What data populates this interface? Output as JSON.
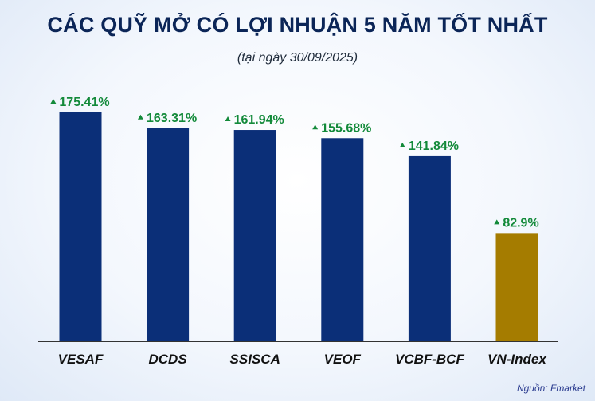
{
  "header": {
    "title": "CÁC QUỸ MỞ CÓ LỢI NHUẬN 5 NĂM TỐT NHẤT",
    "subtitle": "(tại ngày 30/09/2025)"
  },
  "footer": {
    "source": "Nguồn: Fmarket"
  },
  "colors": {
    "fund_bar": "#0b2f78",
    "index_bar": "#a57c00",
    "value_label": "#138a3a",
    "axis": "#333333"
  },
  "chart_data": {
    "type": "bar",
    "title": "CÁC QUỸ MỞ CÓ LỢI NHUẬN 5 NĂM TỐT NHẤT",
    "subtitle": "(tại ngày 30/09/2025)",
    "categories": [
      "VESAF",
      "DCDS",
      "SSISCA",
      "VEOF",
      "VCBF-BCF",
      "VN-Index"
    ],
    "values": [
      175.41,
      163.31,
      161.94,
      155.68,
      141.84,
      82.9
    ],
    "labels": [
      "175.41%",
      "163.31%",
      "161.94%",
      "155.68%",
      "141.84%",
      "82.9%"
    ],
    "highlight": [
      "fund",
      "fund",
      "fund",
      "fund",
      "fund",
      "index"
    ],
    "xlabel": "",
    "ylabel": "",
    "ylim": [
      0,
      175.41
    ],
    "grid": false,
    "legend": "none"
  }
}
